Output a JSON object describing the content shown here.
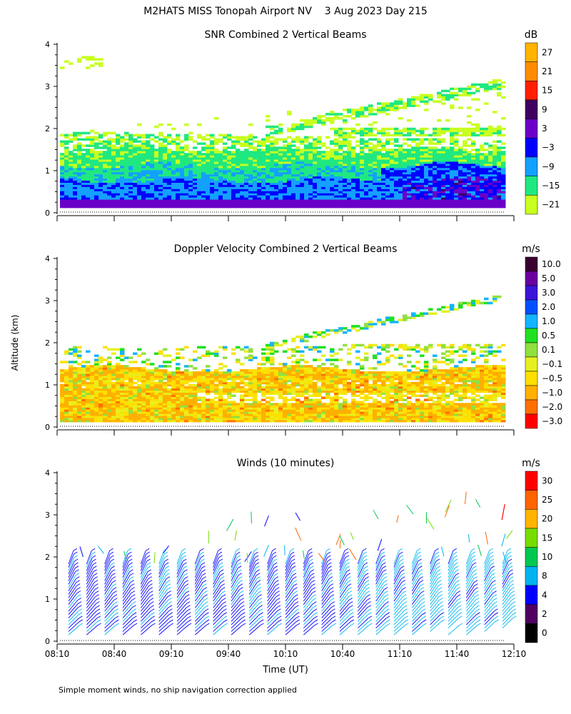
{
  "figure": {
    "title": "M2HATS MISS Tonopah Airport NV    3 Aug 2023 Day 215",
    "shared_ylabel": "Altitude (km)",
    "shared_xlabel": "Time (UT)",
    "footnote": "Simple moment winds, no ship navigation correction applied"
  },
  "chart_data": [
    {
      "type": "heatmap",
      "title": "SNR Combined 2 Vertical Beams",
      "ylim": [
        0,
        4
      ],
      "yticks": [
        "0",
        "1",
        "2",
        "3",
        "4"
      ],
      "xlim": [
        "08:10",
        "12:10"
      ],
      "colorbar": {
        "unit": "dB",
        "labels": [
          "27",
          "21",
          "15",
          "9",
          "3",
          "−3",
          "−9",
          "−15",
          "−21"
        ],
        "colors": [
          "#ffb400",
          "#ff8c00",
          "#ff2000",
          "#400060",
          "#6a00c8",
          "#0000ff",
          "#14a0ff",
          "#20e880",
          "#c8ff20"
        ]
      },
      "summary": {
        "strong_layer_km": [
          0.1,
          1.4
        ],
        "secondary_layer_km": [
          1.5,
          1.9
        ],
        "upper_rising_layer_km": [
          2.0,
          3.2
        ],
        "data_top_km": 4.0
      }
    },
    {
      "type": "heatmap",
      "title": "Doppler Velocity Combined 2 Vertical Beams",
      "ylim": [
        0,
        4
      ],
      "yticks": [
        "0",
        "1",
        "2",
        "3",
        "4"
      ],
      "xlim": [
        "08:10",
        "12:10"
      ],
      "colorbar": {
        "unit": "m/s",
        "labels": [
          "10.0",
          "5.0",
          "3.0",
          "2.0",
          "1.0",
          "0.5",
          "0.1",
          "−0.1",
          "−0.5",
          "−1.0",
          "−2.0",
          "−3.0"
        ],
        "colors": [
          "#3a0030",
          "#6a00a0",
          "#3c14d8",
          "#0050ff",
          "#14b4ff",
          "#20e020",
          "#90e040",
          "#e6f020",
          "#ffe000",
          "#ffb000",
          "#ff7000",
          "#ff0000"
        ]
      },
      "summary": {
        "main_layer_km": [
          0.1,
          1.4
        ],
        "scattered_echo_km": [
          1.5,
          3.0
        ]
      }
    },
    {
      "type": "scatter",
      "title": "Winds (10 minutes)",
      "ylim": [
        0,
        4
      ],
      "yticks": [
        "0",
        "1",
        "2",
        "3",
        "4"
      ],
      "x": [
        "08:10",
        "08:40",
        "09:10",
        "09:40",
        "10:10",
        "10:40",
        "11:10",
        "11:40",
        "12:10"
      ],
      "xlim": [
        "08:10",
        "12:10"
      ],
      "colorbar": {
        "unit": "m/s",
        "labels": [
          "30",
          "25",
          "20",
          "15",
          "10",
          "8",
          "4",
          "2",
          "0"
        ],
        "colors": [
          "#ff0000",
          "#ff6400",
          "#ffb400",
          "#78dc00",
          "#00c850",
          "#00b4f0",
          "#0000ff",
          "#500060",
          "#000000"
        ]
      },
      "summary": {
        "profile_interval_min": 10,
        "barb_altitude_km": [
          0.1,
          3.3
        ],
        "dominant_speed_ms": [
          4,
          10
        ]
      }
    }
  ],
  "axes": {
    "xticks": [
      "08:10",
      "08:40",
      "09:10",
      "09:40",
      "10:10",
      "10:40",
      "11:10",
      "11:40",
      "12:10"
    ]
  }
}
